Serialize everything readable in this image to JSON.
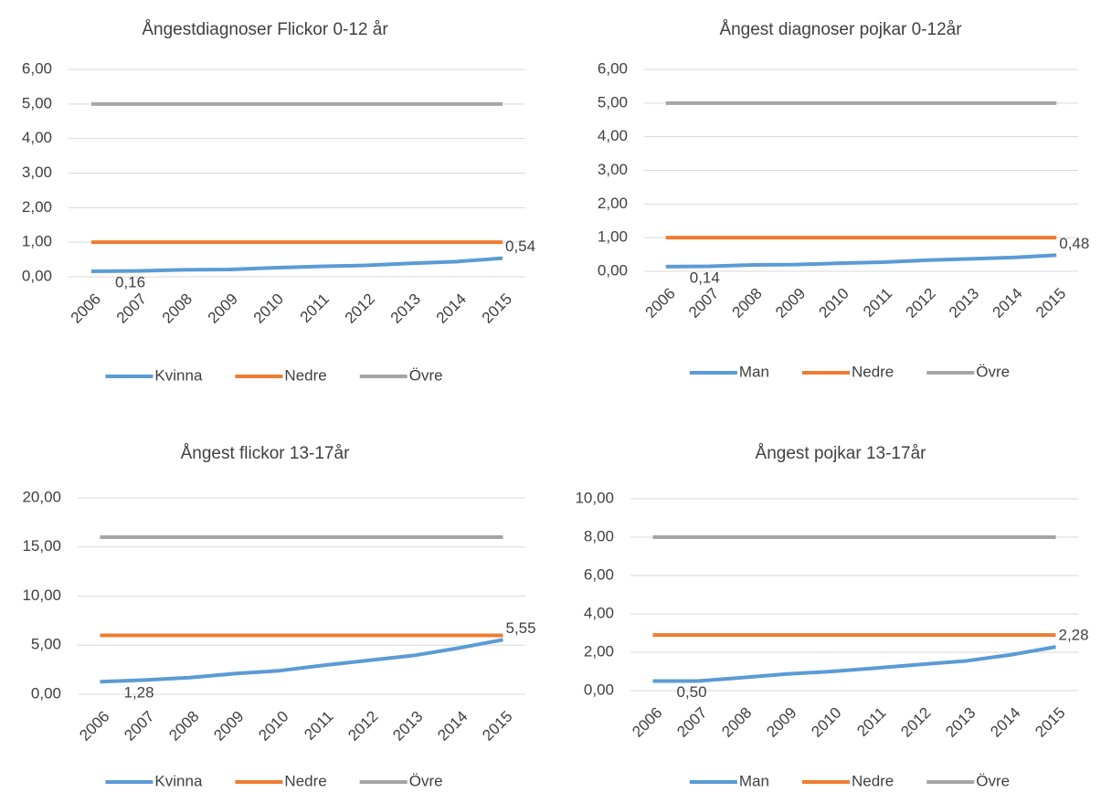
{
  "chart_data": [
    {
      "type": "line",
      "title": "Ångestdiagnoser Flickor 0-12 år",
      "categories": [
        "2006",
        "2007",
        "2008",
        "2009",
        "2010",
        "2011",
        "2012",
        "2013",
        "2014",
        "2015"
      ],
      "ylim": [
        0,
        6
      ],
      "yticks": [
        {
          "value": 0,
          "label": "0,00"
        },
        {
          "value": 1,
          "label": "1,00"
        },
        {
          "value": 2,
          "label": "2,00"
        },
        {
          "value": 3,
          "label": "3,00"
        },
        {
          "value": 4,
          "label": "4,00"
        },
        {
          "value": 5,
          "label": "5,00"
        },
        {
          "value": 6,
          "label": "6,00"
        }
      ],
      "grid": true,
      "legend": "bottom",
      "series": [
        {
          "name": "Kvinna",
          "color": "#5b9bd5",
          "values": [
            0.16,
            0.17,
            0.2,
            0.21,
            0.26,
            0.3,
            0.33,
            0.39,
            0.44,
            0.54
          ],
          "value_labels": [
            "0,16",
            null,
            null,
            null,
            null,
            null,
            null,
            null,
            null,
            "0,54"
          ]
        },
        {
          "name": "Nedre",
          "color": "#ed7d31",
          "values": [
            1,
            1,
            1,
            1,
            1,
            1,
            1,
            1,
            1,
            1
          ]
        },
        {
          "name": "Övre",
          "color": "#a5a5a5",
          "values": [
            5,
            5,
            5,
            5,
            5,
            5,
            5,
            5,
            5,
            5
          ]
        }
      ]
    },
    {
      "type": "line",
      "title": "Ångest diagnoser pojkar 0-12år",
      "categories": [
        "2006",
        "2007",
        "2008",
        "2009",
        "2010",
        "2011",
        "2012",
        "2013",
        "2014",
        "2015"
      ],
      "ylim": [
        0,
        6
      ],
      "yticks": [
        {
          "value": 0,
          "label": "0,00"
        },
        {
          "value": 1,
          "label": "1,00"
        },
        {
          "value": 2,
          "label": "2,00"
        },
        {
          "value": 3,
          "label": "3,00"
        },
        {
          "value": 4,
          "label": "4,00"
        },
        {
          "value": 5,
          "label": "5,00"
        },
        {
          "value": 6,
          "label": "6,00"
        }
      ],
      "grid": true,
      "legend": "bottom",
      "series": [
        {
          "name": "Man",
          "color": "#5b9bd5",
          "values": [
            0.14,
            0.15,
            0.19,
            0.2,
            0.24,
            0.27,
            0.33,
            0.37,
            0.41,
            0.48
          ],
          "value_labels": [
            "0,14",
            null,
            null,
            null,
            null,
            null,
            null,
            null,
            null,
            "0,48"
          ]
        },
        {
          "name": "Nedre",
          "color": "#ed7d31",
          "values": [
            1,
            1,
            1,
            1,
            1,
            1,
            1,
            1,
            1,
            1
          ]
        },
        {
          "name": "Övre",
          "color": "#a5a5a5",
          "values": [
            5,
            5,
            5,
            5,
            5,
            5,
            5,
            5,
            5,
            5
          ]
        }
      ]
    },
    {
      "type": "line",
      "title": "Ångest flickor 13-17år",
      "categories": [
        "2006",
        "2007",
        "2008",
        "2009",
        "2010",
        "2011",
        "2012",
        "2013",
        "2014",
        "2015"
      ],
      "ylim": [
        0,
        20
      ],
      "yticks": [
        {
          "value": 0,
          "label": "0,00"
        },
        {
          "value": 5,
          "label": "5,00"
        },
        {
          "value": 10,
          "label": "10,00"
        },
        {
          "value": 15,
          "label": "15,00"
        },
        {
          "value": 20,
          "label": "20,00"
        }
      ],
      "grid": true,
      "legend": "bottom",
      "series": [
        {
          "name": "Kvinna",
          "color": "#5b9bd5",
          "values": [
            1.28,
            1.45,
            1.7,
            2.1,
            2.4,
            2.95,
            3.45,
            3.95,
            4.7,
            5.55
          ],
          "value_labels": [
            "1,28",
            null,
            null,
            null,
            null,
            null,
            null,
            null,
            null,
            "5,55"
          ]
        },
        {
          "name": "Nedre",
          "color": "#ed7d31",
          "values": [
            6,
            6,
            6,
            6,
            6,
            6,
            6,
            6,
            6,
            6
          ]
        },
        {
          "name": "Övre",
          "color": "#a5a5a5",
          "values": [
            16,
            16,
            16,
            16,
            16,
            16,
            16,
            16,
            16,
            16
          ]
        }
      ]
    },
    {
      "type": "line",
      "title": "Ångest pojkar 13-17år",
      "categories": [
        "2006",
        "2007",
        "2008",
        "2009",
        "2010",
        "2011",
        "2012",
        "2013",
        "2014",
        "2015"
      ],
      "ylim": [
        0,
        10
      ],
      "yticks": [
        {
          "value": 0,
          "label": "0,00"
        },
        {
          "value": 2,
          "label": "2,00"
        },
        {
          "value": 4,
          "label": "4,00"
        },
        {
          "value": 6,
          "label": "6,00"
        },
        {
          "value": 8,
          "label": "8,00"
        },
        {
          "value": 10,
          "label": "10,00"
        }
      ],
      "grid": true,
      "legend": "bottom",
      "series": [
        {
          "name": "Man",
          "color": "#5b9bd5",
          "values": [
            0.5,
            0.5,
            0.68,
            0.87,
            1.0,
            1.18,
            1.37,
            1.55,
            1.87,
            2.28
          ],
          "value_labels": [
            "0,50",
            null,
            null,
            null,
            null,
            null,
            null,
            null,
            null,
            "2,28"
          ]
        },
        {
          "name": "Nedre",
          "color": "#ed7d31",
          "values": [
            2.9,
            2.9,
            2.9,
            2.9,
            2.9,
            2.9,
            2.9,
            2.9,
            2.9,
            2.9
          ]
        },
        {
          "name": "Övre",
          "color": "#a5a5a5",
          "values": [
            8,
            8,
            8,
            8,
            8,
            8,
            8,
            8,
            8,
            8
          ]
        }
      ]
    }
  ]
}
